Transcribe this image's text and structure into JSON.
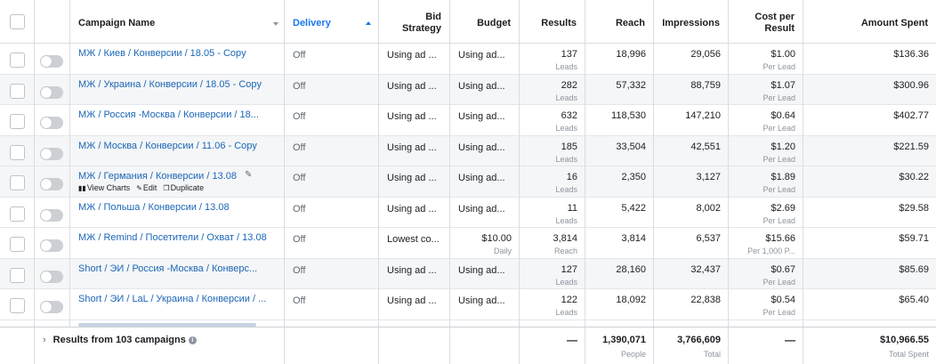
{
  "columns": {
    "campaign_name": "Campaign Name",
    "delivery": "Delivery",
    "bid_strategy_1": "Bid",
    "bid_strategy_2": "Strategy",
    "budget": "Budget",
    "results": "Results",
    "reach": "Reach",
    "impressions": "Impressions",
    "cost_per_result_1": "Cost per",
    "cost_per_result_2": "Result",
    "amount_spent": "Amount Spent"
  },
  "rows": [
    {
      "name": "МЖ / Киев / Конверсии / 18.05 - Copy",
      "delivery": "Off",
      "bid": "Using ad ...",
      "budget": "Using ad...",
      "budget_sub": "",
      "results": "137",
      "results_sub": "Leads",
      "reach": "18,996",
      "impressions": "29,056",
      "cost": "$1.00",
      "cost_sub": "Per Lead",
      "amount": "$136.36"
    },
    {
      "name": "МЖ / Украина / Конверсии / 18.05 - Copy",
      "delivery": "Off",
      "bid": "Using ad ...",
      "budget": "Using ad...",
      "budget_sub": "",
      "results": "282",
      "results_sub": "Leads",
      "reach": "57,332",
      "impressions": "88,759",
      "cost": "$1.07",
      "cost_sub": "Per Lead",
      "amount": "$300.96"
    },
    {
      "name": "МЖ / Россия -Москва / Конверсии / 18...",
      "delivery": "Off",
      "bid": "Using ad ...",
      "budget": "Using ad...",
      "budget_sub": "",
      "results": "632",
      "results_sub": "Leads",
      "reach": "118,530",
      "impressions": "147,210",
      "cost": "$0.64",
      "cost_sub": "Per Lead",
      "amount": "$402.77"
    },
    {
      "name": "МЖ / Москва / Конверсии / 11.06 - Copy",
      "delivery": "Off",
      "bid": "Using ad ...",
      "budget": "Using ad...",
      "budget_sub": "",
      "results": "185",
      "results_sub": "Leads",
      "reach": "33,504",
      "impressions": "42,551",
      "cost": "$1.20",
      "cost_sub": "Per Lead",
      "amount": "$221.59"
    },
    {
      "name": "МЖ / Германия / Конверсии / 13.08",
      "delivery": "Off",
      "bid": "Using ad ...",
      "budget": "Using ad...",
      "budget_sub": "",
      "results": "16",
      "results_sub": "Leads",
      "reach": "2,350",
      "impressions": "3,127",
      "cost": "$1.89",
      "cost_sub": "Per Lead",
      "amount": "$30.22"
    },
    {
      "name": "МЖ / Польша / Конверсии / 13.08",
      "delivery": "Off",
      "bid": "Using ad ...",
      "budget": "Using ad...",
      "budget_sub": "",
      "results": "11",
      "results_sub": "Leads",
      "reach": "5,422",
      "impressions": "8,002",
      "cost": "$2.69",
      "cost_sub": "Per Lead",
      "amount": "$29.58"
    },
    {
      "name": "МЖ / Remind / Посетители / Охват / 13.08",
      "delivery": "Off",
      "bid": "Lowest co...",
      "budget": "$10.00",
      "budget_sub": "Daily",
      "results": "3,814",
      "results_sub": "Reach",
      "reach": "3,814",
      "impressions": "6,537",
      "cost": "$15.66",
      "cost_sub": "Per 1,000 P...",
      "amount": "$59.71"
    },
    {
      "name": "Short / ЭИ / Россия -Москва / Конверс...",
      "delivery": "Off",
      "bid": "Using ad ...",
      "budget": "Using ad...",
      "budget_sub": "",
      "results": "127",
      "results_sub": "Leads",
      "reach": "28,160",
      "impressions": "32,437",
      "cost": "$0.67",
      "cost_sub": "Per Lead",
      "amount": "$85.69"
    },
    {
      "name": "Short / ЭИ / LaL / Украина / Конверсии / ...",
      "delivery": "Off",
      "bid": "Using ad ...",
      "budget": "Using ad...",
      "budget_sub": "",
      "results": "122",
      "results_sub": "Leads",
      "reach": "18,092",
      "impressions": "22,838",
      "cost": "$0.54",
      "cost_sub": "Per Lead",
      "amount": "$65.40"
    }
  ],
  "hover_actions": {
    "view_charts": "View Charts",
    "edit": "Edit",
    "duplicate": "Duplicate"
  },
  "footer": {
    "label": "Results from 103 campaigns",
    "results": "—",
    "reach": "1,390,071",
    "reach_sub": "People",
    "impressions": "3,766,609",
    "impressions_sub": "Total",
    "cost": "—",
    "amount": "$10,966.55",
    "amount_sub": "Total Spent"
  },
  "colors": {
    "link": "#1b66b7",
    "accent": "#1877f2",
    "alt_row": "#f5f6f7"
  },
  "icons": {
    "sort": "chevron-down-icon",
    "sort_active": "sort-up-icon",
    "info": "info-icon",
    "pencil": "pencil-icon"
  }
}
